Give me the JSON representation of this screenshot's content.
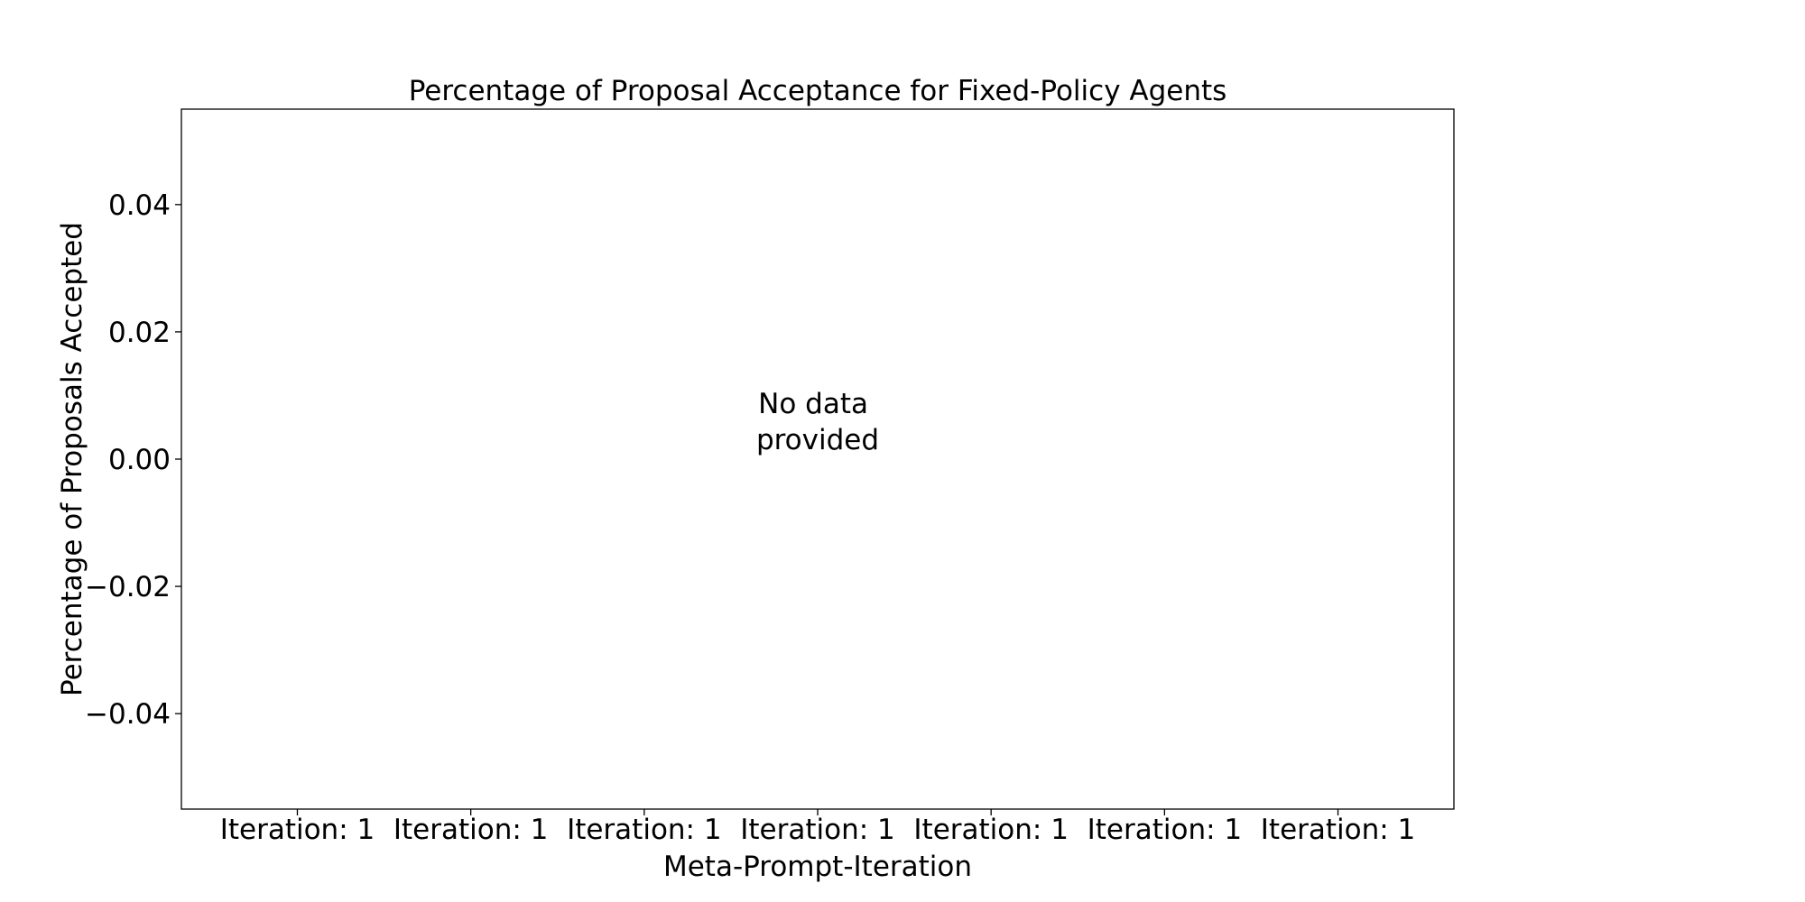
{
  "chart_data": {
    "type": "bar",
    "title": "Percentage of Proposal Acceptance for Fixed-Policy Agents",
    "xlabel": "Meta-Prompt-Iteration",
    "ylabel": "Percentage of Proposals Accepted",
    "categories": [
      "Iteration: 1",
      "Iteration: 1",
      "Iteration: 1",
      "Iteration: 1",
      "Iteration: 1",
      "Iteration: 1",
      "Iteration: 1"
    ],
    "series": [],
    "ylim": [
      -0.055,
      0.055
    ],
    "yticks": [
      -0.04,
      -0.02,
      0.0,
      0.02,
      0.04
    ],
    "ytick_labels": [
      "−0.04",
      "−0.02",
      "0.00",
      "0.02",
      "0.04"
    ],
    "annotation": [
      "No data",
      "provided"
    ],
    "grid": false,
    "legend": "none"
  }
}
